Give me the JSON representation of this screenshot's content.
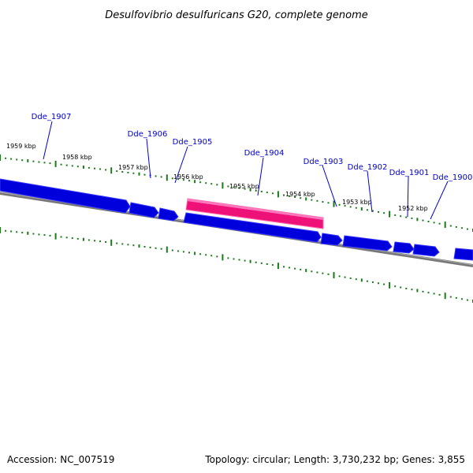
{
  "title": "Desulfovibrio desulfuricans G20, complete genome",
  "footer": {
    "accession": "Accession: NC_007519",
    "summary": "Topology: circular; Length: 3,730,232 bp; Genes: 3,855"
  },
  "colors": {
    "gene": "#0000dd",
    "highlight": "#ee1177",
    "tick": "#1a7a1a",
    "backbone": "#777777",
    "gene_label": "#0000cc"
  },
  "scale_labels": [
    "1959 kbp",
    "1958 kbp",
    "1957 kbp",
    "1956 kbp",
    "1955 kbp",
    "1954 kbp",
    "1953 kbp",
    "1952 kbp"
  ],
  "genes": [
    {
      "label": "Dde_1907"
    },
    {
      "label": "Dde_1906"
    },
    {
      "label": "Dde_1905"
    },
    {
      "label": "Dde_1904"
    },
    {
      "label": "Dde_1903"
    },
    {
      "label": "Dde_1902"
    },
    {
      "label": "Dde_1901"
    },
    {
      "label": "Dde_1900"
    }
  ]
}
